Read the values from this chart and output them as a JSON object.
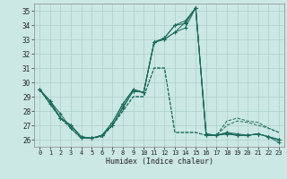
{
  "xlabel": "Humidex (Indice chaleur)",
  "x": [
    0,
    1,
    2,
    3,
    4,
    5,
    6,
    7,
    8,
    9,
    10,
    11,
    12,
    13,
    14,
    15,
    16,
    17,
    18,
    19,
    20,
    21,
    22,
    23
  ],
  "series1": [
    29.5,
    28.7,
    27.5,
    27.0,
    26.2,
    26.1,
    26.3,
    27.2,
    28.5,
    29.5,
    29.3,
    32.8,
    33.1,
    34.0,
    34.3,
    35.2,
    26.4,
    26.3,
    26.4,
    26.3,
    26.3,
    26.4,
    26.2,
    26.0
  ],
  "series2": [
    29.5,
    28.7,
    27.8,
    26.8,
    26.1,
    26.1,
    26.3,
    27.0,
    28.2,
    29.4,
    29.3,
    32.8,
    33.1,
    34.0,
    34.1,
    35.2,
    26.3,
    26.3,
    26.4,
    26.3,
    26.3,
    26.4,
    26.2,
    25.8
  ],
  "series3": [
    29.5,
    28.5,
    27.5,
    27.0,
    26.2,
    26.1,
    26.3,
    27.0,
    28.3,
    29.4,
    29.3,
    32.8,
    33.0,
    33.5,
    34.2,
    35.2,
    26.3,
    26.3,
    26.5,
    26.4,
    26.3,
    26.4,
    26.2,
    26.0
  ],
  "series4": [
    29.5,
    28.7,
    27.5,
    27.0,
    26.2,
    26.1,
    26.3,
    27.2,
    28.5,
    29.5,
    29.3,
    32.8,
    33.0,
    33.5,
    33.8,
    35.2,
    26.4,
    26.3,
    26.5,
    26.3,
    26.3,
    26.4,
    26.2,
    26.0
  ],
  "series5": [
    29.5,
    28.5,
    27.5,
    26.8,
    26.1,
    26.1,
    26.2,
    27.0,
    28.0,
    29.0,
    29.0,
    31.0,
    31.0,
    26.5,
    26.5,
    26.5,
    26.3,
    26.3,
    27.0,
    27.3,
    27.2,
    27.0,
    26.8,
    26.5
  ],
  "series6": [
    29.5,
    28.5,
    27.5,
    26.8,
    26.1,
    26.1,
    26.2,
    27.0,
    28.0,
    29.0,
    29.0,
    31.0,
    31.0,
    26.5,
    26.5,
    26.5,
    26.3,
    26.3,
    27.3,
    27.5,
    27.3,
    27.2,
    26.8,
    26.5
  ],
  "line_color": "#1a6b5a",
  "bg_color": "#cce8e4",
  "grid_color": "#aaceca",
  "ylim": [
    25.5,
    35.5
  ],
  "yticks": [
    26,
    27,
    28,
    29,
    30,
    31,
    32,
    33,
    34,
    35
  ],
  "xlim": [
    -0.5,
    23.5
  ],
  "xticks": [
    0,
    1,
    2,
    3,
    4,
    5,
    6,
    7,
    8,
    9,
    10,
    11,
    12,
    13,
    14,
    15,
    16,
    17,
    18,
    19,
    20,
    21,
    22,
    23
  ]
}
